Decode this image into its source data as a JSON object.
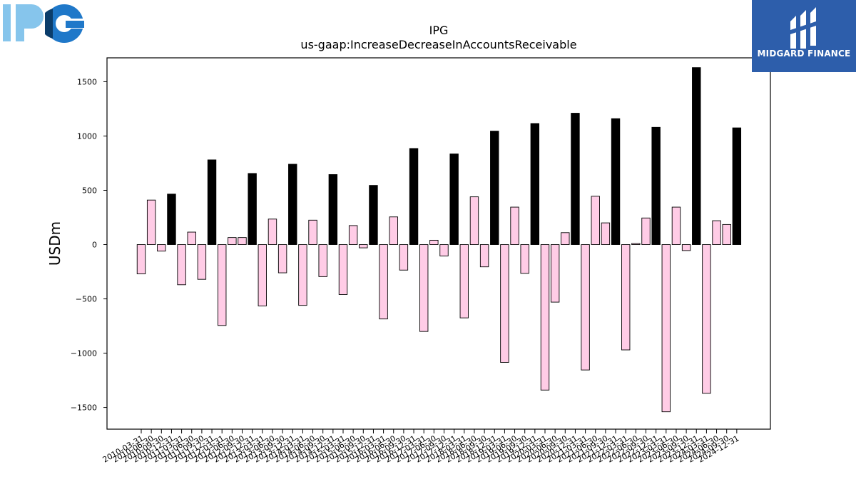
{
  "logo_left": {
    "text": "IPG",
    "colors": [
      "#86c5ec",
      "#1f78c9",
      "#0b3d6b"
    ]
  },
  "brand": {
    "name": "MIDGARD FINANCE",
    "background": "#2d5eab"
  },
  "chart_data": {
    "type": "bar",
    "title": "IPG",
    "subtitle": "us-gaap:IncreaseDecreaseInAccountsReceivable",
    "xlabel": "",
    "ylabel": "USDm",
    "ylim": [
      -1700,
      1720
    ],
    "yticks": [
      -1500,
      -1000,
      -500,
      0,
      500,
      1000,
      1500
    ],
    "grid": false,
    "colors": {
      "quarterly": "#ffcce6",
      "annual": "#000000",
      "edge": "#000000"
    },
    "categories": [
      "2010-03-31",
      "2010-06-30",
      "2010-09-30",
      "2010-12-31",
      "2011-03-31",
      "2011-06-30",
      "2011-09-30",
      "2011-12-31",
      "2012-03-31",
      "2012-06-30",
      "2012-09-30",
      "2012-12-31",
      "2013-03-31",
      "2013-06-30",
      "2013-09-30",
      "2013-12-31",
      "2014-03-31",
      "2014-06-30",
      "2014-09-30",
      "2014-12-31",
      "2015-03-31",
      "2015-06-30",
      "2015-09-30",
      "2015-12-31",
      "2016-03-31",
      "2016-06-30",
      "2016-09-30",
      "2016-12-31",
      "2017-03-31",
      "2017-06-30",
      "2017-09-30",
      "2017-12-31",
      "2018-03-31",
      "2018-06-30",
      "2018-09-30",
      "2018-12-31",
      "2019-03-31",
      "2019-06-30",
      "2019-09-30",
      "2019-12-31",
      "2020-03-31",
      "2020-06-30",
      "2020-09-30",
      "2020-12-31",
      "2021-03-31",
      "2021-06-30",
      "2021-09-30",
      "2021-12-31",
      "2022-03-31",
      "2022-06-30",
      "2022-09-30",
      "2022-12-31",
      "2023-03-31",
      "2023-06-30",
      "2023-09-30",
      "2023-12-31",
      "2024-03-31",
      "2024-06-30",
      "2024-09-30",
      "2024-12-31"
    ],
    "values": [
      -270,
      410,
      -60,
      465,
      -370,
      115,
      -320,
      780,
      -745,
      65,
      65,
      655,
      -565,
      235,
      -260,
      740,
      -560,
      225,
      -295,
      645,
      -460,
      175,
      -30,
      545,
      -685,
      255,
      -235,
      885,
      -800,
      40,
      -105,
      835,
      -675,
      440,
      -205,
      1045,
      -1085,
      345,
      -265,
      1115,
      -1340,
      -530,
      110,
      1210,
      -1155,
      445,
      200,
      1160,
      -970,
      10,
      245,
      1080,
      -1540,
      345,
      -55,
      1630,
      -1370,
      220,
      185,
      1075
    ]
  }
}
